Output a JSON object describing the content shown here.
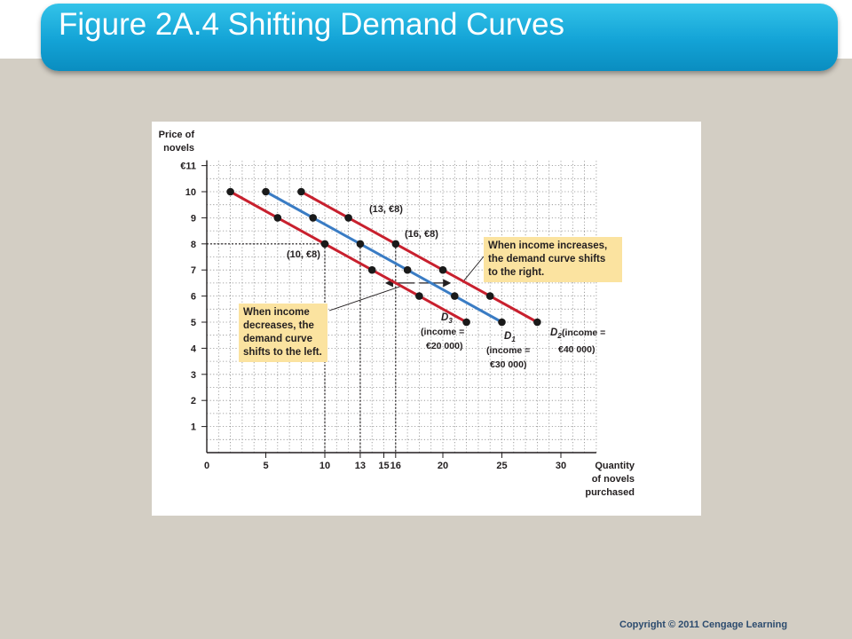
{
  "slide": {
    "title": "Figure 2A.4 Shifting Demand Curves",
    "copyright": "Copyright © 2011 Cengage Learning"
  },
  "callouts": {
    "increase": "When income increases, the demand curve shifts to the right.",
    "decrease": "When income decreases, the demand curve shifts to the left."
  },
  "chart_data": {
    "type": "line",
    "ylabel": "Price of novels",
    "xlabel": "Quantity of novels purchased",
    "xlim": [
      0,
      33
    ],
    "ylim": [
      0,
      11
    ],
    "x_ticks": [
      0,
      5,
      10,
      13,
      15,
      16,
      20,
      25,
      30
    ],
    "y_ticks": [
      0,
      1,
      2,
      3,
      4,
      5,
      6,
      7,
      8,
      9,
      10,
      11
    ],
    "y_tick_labels": [
      "0",
      "1",
      "2",
      "3",
      "4",
      "5",
      "6",
      "7",
      "8",
      "9",
      "10",
      "€11"
    ],
    "grid": true,
    "series": [
      {
        "name": "D3",
        "label": "(income = €20 000)",
        "color": "#c8202e",
        "points": [
          [
            2,
            10
          ],
          [
            6,
            9
          ],
          [
            10,
            8
          ],
          [
            14,
            7
          ],
          [
            18,
            6
          ],
          [
            22,
            5
          ]
        ]
      },
      {
        "name": "D1",
        "label": "(income = €30 000)",
        "color": "#3a7cc4",
        "points": [
          [
            5,
            10
          ],
          [
            9,
            9
          ],
          [
            13,
            8
          ],
          [
            17,
            7
          ],
          [
            21,
            6
          ],
          [
            25,
            5
          ]
        ]
      },
      {
        "name": "D2",
        "label": "(income = €40 000)",
        "color": "#c8202e",
        "points": [
          [
            8,
            10
          ],
          [
            12,
            9
          ],
          [
            16,
            8
          ],
          [
            20,
            7
          ],
          [
            24,
            6
          ],
          [
            28,
            5
          ]
        ]
      }
    ],
    "annotations": [
      {
        "text": "(10, €8)",
        "x": 10,
        "y": 8
      },
      {
        "text": "(13, €8)",
        "x": 13,
        "y": 8
      },
      {
        "text": "(16, €8)",
        "x": 16,
        "y": 8
      }
    ]
  }
}
